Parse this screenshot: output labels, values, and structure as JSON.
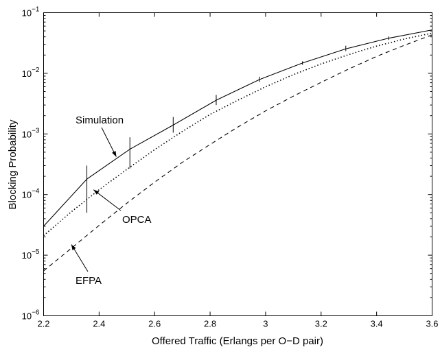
{
  "chart_data": {
    "type": "line",
    "xlabel": "Offered Traffic (Erlangs per O−D pair)",
    "ylabel": "Blocking Probability",
    "xlim": [
      2.2,
      3.6
    ],
    "ylim": [
      1e-06,
      0.1
    ],
    "yscale": "log",
    "grid": false,
    "xticks": [
      2.2,
      2.4,
      2.6,
      2.8,
      3.0,
      3.2,
      3.4,
      3.6
    ],
    "xtick_labels": [
      "2.2",
      "2.4",
      "2.6",
      "2.8",
      "3",
      "3.2",
      "3.4",
      "3.6"
    ],
    "yticks": [
      {
        "value": 1e-06,
        "base": "10",
        "exp": "−6"
      },
      {
        "value": 1e-05,
        "base": "10",
        "exp": "−5"
      },
      {
        "value": 0.0001,
        "base": "10",
        "exp": "−4"
      },
      {
        "value": 0.001,
        "base": "10",
        "exp": "−3"
      },
      {
        "value": 0.01,
        "base": "10",
        "exp": "−2"
      },
      {
        "value": 0.1,
        "base": "10",
        "exp": "−1"
      }
    ],
    "series": [
      {
        "label_key": "simulation",
        "style": "solid",
        "x": [
          2.2,
          2.356,
          2.511,
          2.667,
          2.822,
          2.978,
          3.133,
          3.289,
          3.444,
          3.6
        ],
        "y": [
          3e-05,
          0.00018,
          0.00056,
          0.0014,
          0.0036,
          0.0079,
          0.0148,
          0.0253,
          0.038,
          0.052
        ],
        "error_bars": [
          {
            "x": 2.356,
            "lo": 5e-05,
            "hi": 0.0003
          },
          {
            "x": 2.511,
            "lo": 0.00027,
            "hi": 0.00088
          },
          {
            "x": 2.667,
            "lo": 0.00105,
            "hi": 0.0019
          },
          {
            "x": 2.822,
            "lo": 0.003,
            "hi": 0.0044
          },
          {
            "x": 2.978,
            "lo": 0.0072,
            "hi": 0.0088
          },
          {
            "x": 3.133,
            "lo": 0.0138,
            "hi": 0.0158
          },
          {
            "x": 3.289,
            "lo": 0.0232,
            "hi": 0.0285
          },
          {
            "x": 3.444,
            "lo": 0.0355,
            "hi": 0.0405
          }
        ]
      },
      {
        "label_key": "opca",
        "style": "dotted",
        "x": [
          2.2,
          2.3,
          2.4,
          2.5,
          2.6,
          2.7,
          2.8,
          2.9,
          3.0,
          3.1,
          3.2,
          3.3,
          3.4,
          3.5,
          3.6
        ],
        "y": [
          2.1e-05,
          5.2e-05,
          0.00012,
          0.00026,
          0.00055,
          0.0011,
          0.0021,
          0.0036,
          0.006,
          0.0095,
          0.0143,
          0.0204,
          0.0281,
          0.0368,
          0.046
        ]
      },
      {
        "label_key": "efpa",
        "style": "dashed",
        "x": [
          2.2,
          2.3,
          2.4,
          2.5,
          2.6,
          2.7,
          2.8,
          2.9,
          3.0,
          3.1,
          3.2,
          3.3,
          3.4,
          3.5,
          3.6
        ],
        "y": [
          5.5e-06,
          1.3e-05,
          3.1e-05,
          7.2e-05,
          0.00016,
          0.00034,
          0.00067,
          0.0013,
          0.0024,
          0.0042,
          0.0071,
          0.0118,
          0.019,
          0.029,
          0.043
        ]
      }
    ],
    "annotations": {
      "simulation": {
        "text": "Simulation",
        "point_x": 2.462,
        "point_y": 0.00042
      },
      "opca": {
        "text": "OPCA",
        "point_x": 2.38,
        "point_y": 0.00012
      },
      "efpa": {
        "text": "EFPA",
        "point_x": 2.3,
        "point_y": 1.5e-05
      }
    }
  }
}
